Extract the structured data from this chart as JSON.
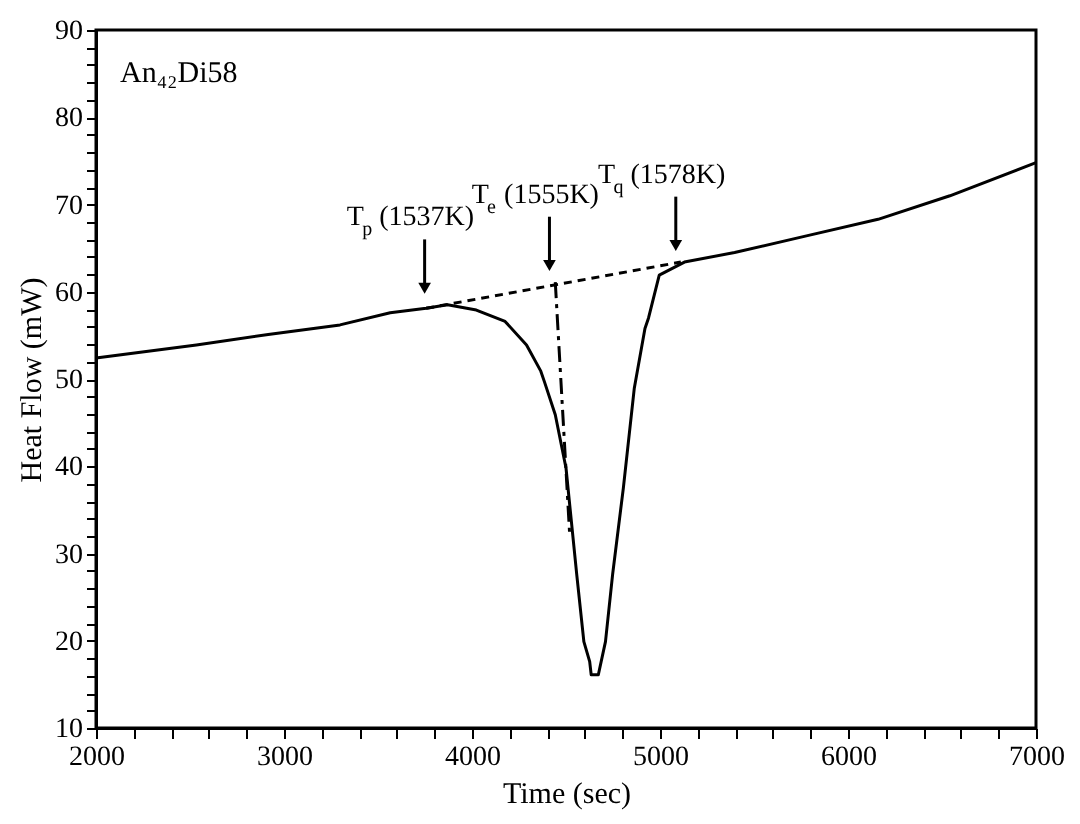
{
  "chart_data": {
    "type": "line",
    "title": "An₄₂Di58",
    "xlabel": "Time (sec)",
    "ylabel": "Heat Flow (mW)",
    "xlim": [
      2000,
      7000
    ],
    "ylim": [
      10,
      90
    ],
    "xticks": [
      2000,
      {
        "value": 2200,
        "label": null
      },
      {
        "value": 2400,
        "label": null
      },
      {
        "value": 2600,
        "label": null
      },
      {
        "value": 2800,
        "label": null
      },
      3000,
      {
        "value": 3200,
        "label": null
      },
      {
        "value": 3400,
        "label": null
      },
      {
        "value": 3600,
        "label": null
      },
      {
        "value": 3800,
        "label": null
      },
      4000,
      {
        "value": 4200,
        "label": null
      },
      {
        "value": 4400,
        "label": null
      },
      {
        "value": 4600,
        "label": null
      },
      {
        "value": 4800,
        "label": null
      },
      5000,
      {
        "value": 5200,
        "label": null
      },
      {
        "value": 5400,
        "label": null
      },
      {
        "value": 5600,
        "label": null
      },
      {
        "value": 5800,
        "label": null
      },
      6000,
      {
        "value": 6200,
        "label": null
      },
      {
        "value": 6400,
        "label": null
      },
      {
        "value": 6600,
        "label": null
      },
      {
        "value": 6800,
        "label": null
      },
      7000
    ],
    "yticks": [
      10,
      {
        "value": 12,
        "label": null
      },
      {
        "value": 14,
        "label": null
      },
      {
        "value": 16,
        "label": null
      },
      {
        "value": 18,
        "label": null
      },
      20,
      {
        "value": 22,
        "label": null
      },
      {
        "value": 24,
        "label": null
      },
      {
        "value": 26,
        "label": null
      },
      {
        "value": 28,
        "label": null
      },
      30,
      {
        "value": 32,
        "label": null
      },
      {
        "value": 34,
        "label": null
      },
      {
        "value": 36,
        "label": null
      },
      {
        "value": 38,
        "label": null
      },
      40,
      {
        "value": 42,
        "label": null
      },
      {
        "value": 44,
        "label": null
      },
      {
        "value": 46,
        "label": null
      },
      {
        "value": 48,
        "label": null
      },
      50,
      {
        "value": 52,
        "label": null
      },
      {
        "value": 54,
        "label": null
      },
      {
        "value": 56,
        "label": null
      },
      {
        "value": 58,
        "label": null
      },
      60,
      {
        "value": 62,
        "label": null
      },
      {
        "value": 64,
        "label": null
      },
      {
        "value": 66,
        "label": null
      },
      {
        "value": 68,
        "label": null
      },
      70,
      {
        "value": 72,
        "label": null
      },
      {
        "value": 74,
        "label": null
      },
      {
        "value": 76,
        "label": null
      },
      {
        "value": 78,
        "label": null
      },
      80,
      {
        "value": 82,
        "label": null
      },
      {
        "value": 84,
        "label": null
      },
      {
        "value": 86,
        "label": null
      },
      {
        "value": 88,
        "label": null
      },
      90
    ],
    "grid": false,
    "marker": "none",
    "series": [
      {
        "color": "#000000",
        "line_style": "solid",
        "x": [
          2000,
          2534,
          2916,
          3298,
          3565,
          3756,
          3870,
          4023,
          4176,
          4290,
          4366,
          4385,
          4443,
          4500,
          4557,
          4595,
          4626,
          4634,
          4672,
          4710,
          4748,
          4805,
          4863,
          4920,
          4939,
          4996,
          5130,
          5397,
          5779,
          6160,
          6542,
          7000
        ],
        "values": [
          52.4,
          53.9,
          55.1,
          56.2,
          57.6,
          58.1,
          58.5,
          57.9,
          56.6,
          53.9,
          50.9,
          49.7,
          45.9,
          39.8,
          27.6,
          19.9,
          17.6,
          16.1,
          16.1,
          19.9,
          27.6,
          37.5,
          48.9,
          55.8,
          57.0,
          61.9,
          63.4,
          64.5,
          66.4,
          68.3,
          71.0,
          74.8
        ]
      },
      {
        "color": "#000000",
        "line_style": "dashed",
        "x": [
          3756,
          5111
        ],
        "values": [
          58.1,
          63.4
        ]
      },
      {
        "color": "#000000",
        "line_style": "dashdot",
        "x": [
          4443,
          4520
        ],
        "values": [
          61.1,
          32.0
        ]
      }
    ],
    "annotations": [
      {
        "text": "T$_{p}$ (1537K)",
        "x": 3748,
        "y": 60.4
      },
      {
        "text": "T$_{e}$ (1555K)",
        "x": 4412,
        "y": 63.0
      },
      {
        "text": "T$_{q}$ (1578K)",
        "x": 5084,
        "y": 65.3
      }
    ]
  }
}
